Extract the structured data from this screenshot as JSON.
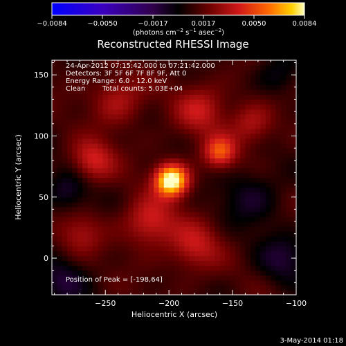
{
  "colorbar": {
    "ticks": [
      "-0.0084",
      "-0.0050",
      "-0.0017",
      "0.0017",
      "0.0050",
      "0.0084"
    ],
    "range": [
      -0.0084,
      0.0084
    ],
    "units_pre": "(photons cm",
    "units_exp1": "−2",
    "units_mid": " s",
    "units_exp2": "−1",
    "units_mid2": " asec",
    "units_exp3": "−2",
    "units_post": ")"
  },
  "chart_data": {
    "type": "heatmap",
    "title": "Reconstructed RHESSI Image",
    "xlabel": "Heliocentric X (arcsec)",
    "ylabel": "Heliocentric Y (arcsec)",
    "xlim": [
      -292,
      -100
    ],
    "ylim": [
      -30,
      162
    ],
    "x_ticks": [
      -250,
      -200,
      -150,
      -100
    ],
    "y_ticks": [
      0,
      50,
      100,
      150
    ],
    "x_tick_labels": [
      "−250",
      "−200",
      "−150",
      "−100"
    ],
    "y_tick_labels": [
      "0",
      "50",
      "100",
      "150"
    ],
    "colormap": "hot-with-blue-purple-negatives",
    "value_range": [
      -0.0084,
      0.0084
    ],
    "peak": {
      "x": -198,
      "y": 64,
      "value": 0.0084
    },
    "sources": [
      {
        "x": -198,
        "y": 64,
        "amplitude": 0.0084,
        "sigma": 9
      },
      {
        "x": -160,
        "y": 87,
        "amplitude": 0.004,
        "sigma": 9
      },
      {
        "x": -260,
        "y": 80,
        "amplitude": 0.003,
        "sigma": 12
      },
      {
        "x": -175,
        "y": 122,
        "amplitude": 0.0025,
        "sigma": 14
      },
      {
        "x": -215,
        "y": 30,
        "amplitude": 0.003,
        "sigma": 14
      },
      {
        "x": -180,
        "y": 10,
        "amplitude": 0.0025,
        "sigma": 14
      },
      {
        "x": -240,
        "y": 130,
        "amplitude": 0.0022,
        "sigma": 14
      },
      {
        "x": -135,
        "y": 110,
        "amplitude": 0.0022,
        "sigma": 12
      },
      {
        "x": -270,
        "y": 20,
        "amplitude": 0.0018,
        "sigma": 12
      }
    ],
    "negative_regions": [
      {
        "x": -280,
        "y": 55,
        "amplitude": -0.002,
        "sigma": 12
      },
      {
        "x": -285,
        "y": -20,
        "amplitude": -0.002,
        "sigma": 14
      },
      {
        "x": -135,
        "y": 50,
        "amplitude": -0.0018,
        "sigma": 16
      },
      {
        "x": -110,
        "y": 0,
        "amplitude": -0.002,
        "sigma": 14
      },
      {
        "x": -115,
        "y": 150,
        "amplitude": -0.0015,
        "sigma": 12
      }
    ]
  },
  "annotations": {
    "time_range": "24-Apr-2012 07:15:42.000 to 07:21:42.000",
    "detectors": "Detectors: 3F 5F 6F 7F 8F 9F, Att 0",
    "energy_range": "Energy Range: 6.0 - 12.0 keV",
    "clean": "Clean",
    "total_counts": "Total counts: 5.03E+04",
    "peak_position": "Position of Peak = [-198,64]"
  },
  "footer": {
    "date": "3-May-2014 01:18"
  }
}
